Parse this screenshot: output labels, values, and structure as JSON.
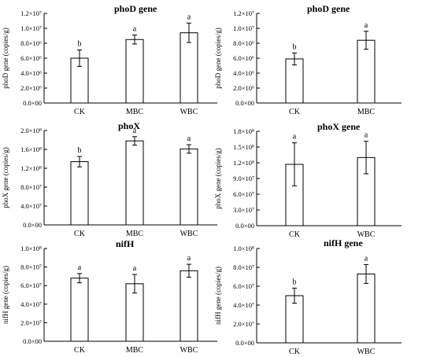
{
  "chart_data": [
    {
      "type": "bar",
      "title": "phoD gene",
      "ylabel": "phoD gene (copies/g)",
      "categories": [
        "CK",
        "MBC",
        "WBC"
      ],
      "values": [
        6000000.0,
        8500000.0,
        9400000.0
      ],
      "errors": [
        1100000.0,
        600000.0,
        1300000.0
      ],
      "letters": [
        "b",
        "a",
        "a"
      ],
      "ylim": [
        0,
        12000000.0
      ],
      "ticks": [
        0,
        2000000.0,
        4000000.0,
        6000000.0,
        8000000.0,
        10000000.0,
        12000000.0
      ],
      "tick_labels": [
        "0.0×00",
        "2.0×10⁶",
        "4.0×10⁶",
        "6.0×10⁶",
        "8.0×10⁶",
        "1.0×10⁷",
        "1.2×10⁷"
      ]
    },
    {
      "type": "bar",
      "title": "phoD gene",
      "ylabel": "phoD gene (copies/g)",
      "categories": [
        "CK",
        "MBC"
      ],
      "values": [
        5900000.0,
        8400000.0
      ],
      "errors": [
        800000.0,
        1200000.0
      ],
      "letters": [
        "b",
        "a"
      ],
      "ylim": [
        0,
        12000000.0
      ],
      "ticks": [
        0,
        2000000.0,
        4000000.0,
        6000000.0,
        8000000.0,
        10000000.0,
        12000000.0
      ],
      "tick_labels": [
        "0.0×00",
        "2.0×10⁶",
        "4.0×10⁶",
        "6.0×10⁶",
        "8.0×10⁶",
        "1.0×10⁷",
        "1.2×10⁷"
      ]
    },
    {
      "type": "bar",
      "title": "phoX",
      "ylabel": "phoX gene (copies/g)",
      "categories": [
        "CK",
        "MBC",
        "WBC"
      ],
      "values": [
        134000000.0,
        178000000.0,
        161000000.0
      ],
      "errors": [
        11000000.0,
        9000000.0,
        9000000.0
      ],
      "letters": [
        "b",
        "a",
        "a"
      ],
      "ylim": [
        0,
        200000000.0
      ],
      "ticks": [
        0,
        40000000.0,
        80000000.0,
        120000000.0,
        160000000.0,
        200000000.0
      ],
      "tick_labels": [
        "0.0×00",
        "4.0×10⁷",
        "8.0×10⁷",
        "1.2×10⁸",
        "1.6×10⁸",
        "2.0×10⁸"
      ]
    },
    {
      "type": "bar",
      "title": "phoX gene",
      "ylabel": "phoX gene (copies/g)",
      "categories": [
        "CK",
        "WBC"
      ],
      "values": [
        117000000.0,
        130000000.0
      ],
      "errors": [
        41000000.0,
        31000000.0
      ],
      "letters": [
        "a",
        "a"
      ],
      "ylim": [
        0,
        180000000.0
      ],
      "ticks": [
        0,
        30000000.0,
        60000000.0,
        90000000.0,
        120000000.0,
        150000000.0,
        180000000.0
      ],
      "tick_labels": [
        "0.0×00",
        "3.0×10⁷",
        "6.0×10⁷",
        "9.0×10⁷",
        "1.2×10⁸",
        "1.5×10⁸",
        "1.8×10⁸"
      ]
    },
    {
      "type": "bar",
      "title": "nifH",
      "ylabel": "nifH gene (copies/g)",
      "categories": [
        "CK",
        "MBC",
        "WBC"
      ],
      "values": [
        68000000.0,
        62000000.0,
        76000000.0
      ],
      "errors": [
        5000000.0,
        10000000.0,
        7000000.0
      ],
      "letters": [
        "a",
        "a",
        "a"
      ],
      "ylim": [
        0,
        100000000.0
      ],
      "ticks": [
        0,
        20000000.0,
        40000000.0,
        60000000.0,
        80000000.0,
        100000000.0
      ],
      "tick_labels": [
        "0.0×00",
        "2.0×10⁷",
        "4.0×10⁷",
        "6.0×10⁷",
        "8.0×10⁷",
        "1.0×10⁸"
      ]
    },
    {
      "type": "bar",
      "title": "nifH gene",
      "ylabel": "nifH gene (copies/g)",
      "categories": [
        "CK",
        "WBC"
      ],
      "values": [
        50000000.0,
        73000000.0
      ],
      "errors": [
        8000000.0,
        10000000.0
      ],
      "letters": [
        "b",
        "a"
      ],
      "ylim": [
        0,
        100000000.0
      ],
      "ticks": [
        0,
        20000000.0,
        40000000.0,
        60000000.0,
        80000000.0,
        100000000.0
      ],
      "tick_labels": [
        "0.0×00",
        "2.0×10⁷",
        "4.0×10⁷",
        "6.0×10⁷",
        "8.0×10⁷",
        "1.0×10⁸"
      ]
    }
  ]
}
